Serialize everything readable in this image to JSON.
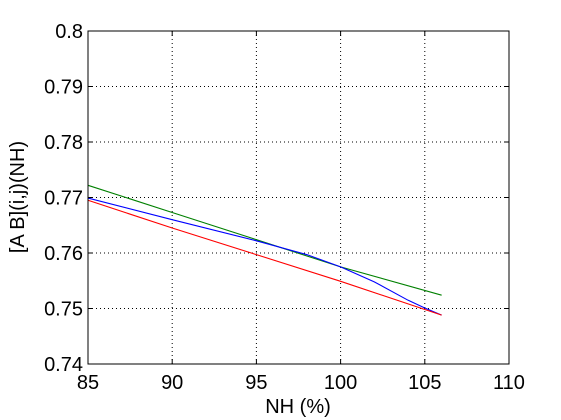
{
  "chart_data": {
    "type": "line",
    "title": "",
    "xlabel": "NH (%)",
    "ylabel": "[A B](i,j)(NH)",
    "xlim": [
      85,
      110
    ],
    "ylim": [
      0.74,
      0.8
    ],
    "xticks": [
      "85",
      "90",
      "95",
      "100",
      "105",
      "110"
    ],
    "yticks": [
      "0.74",
      "0.75",
      "0.76",
      "0.77",
      "0.78",
      "0.79",
      "0.8"
    ],
    "grid": true,
    "legend": "none",
    "series": [
      {
        "color": "#008000",
        "x": [
          85,
          90,
          95,
          100,
          106
        ],
        "y": [
          0.7722,
          0.7673,
          0.7624,
          0.7575,
          0.7524
        ]
      },
      {
        "color": "#0000ff",
        "x": [
          85,
          90,
          95,
          98,
          100,
          102,
          104,
          105,
          106
        ],
        "y": [
          0.7699,
          0.766,
          0.7622,
          0.7597,
          0.7575,
          0.7548,
          0.7515,
          0.7501,
          0.7488
        ]
      },
      {
        "color": "#ff0000",
        "x": [
          85,
          90,
          95,
          100,
          106
        ],
        "y": [
          0.7695,
          0.7645,
          0.7597,
          0.7549,
          0.7488
        ]
      }
    ]
  }
}
